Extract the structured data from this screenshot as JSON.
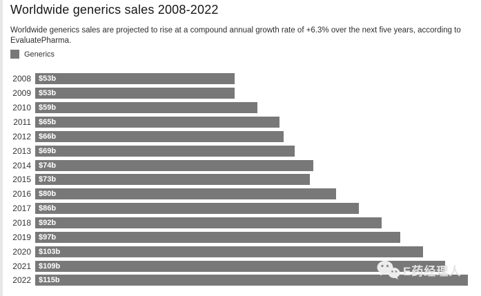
{
  "page": {
    "title": "Worldwide generics sales 2008-2022",
    "subtitle_lines": [
      "Worldwide generics sales are projected to rise at a compound annual growth rate of +6.3% over the next five years, according to",
      "EvaluatePharma."
    ]
  },
  "legend": {
    "label": "Generics",
    "swatch_color": "#787878"
  },
  "watermark": {
    "icon": "wechat-icon",
    "text": "E药经理人"
  },
  "chart_data": {
    "type": "bar",
    "orientation": "horizontal",
    "title": "Worldwide generics sales 2008-2022",
    "series_name": "Generics",
    "categories": [
      "2008",
      "2009",
      "2010",
      "2011",
      "2012",
      "2013",
      "2014",
      "2015",
      "2016",
      "2017",
      "2018",
      "2019",
      "2020",
      "2021",
      "2022"
    ],
    "values": [
      53,
      53,
      59,
      65,
      66,
      69,
      74,
      73,
      80,
      86,
      92,
      97,
      103,
      109,
      115
    ],
    "value_labels": [
      "$53b",
      "$53b",
      "$59b",
      "$65b",
      "$66b",
      "$69b",
      "$74b",
      "$73b",
      "$80b",
      "$86b",
      "$92b",
      "$97b",
      "$103b",
      "$109b",
      "$115b"
    ],
    "xlim": [
      0,
      115
    ],
    "axes_hidden": true,
    "grid": false,
    "legend_position": "top-left",
    "bar_color": "#787878",
    "value_label_color": "#ffffff"
  }
}
